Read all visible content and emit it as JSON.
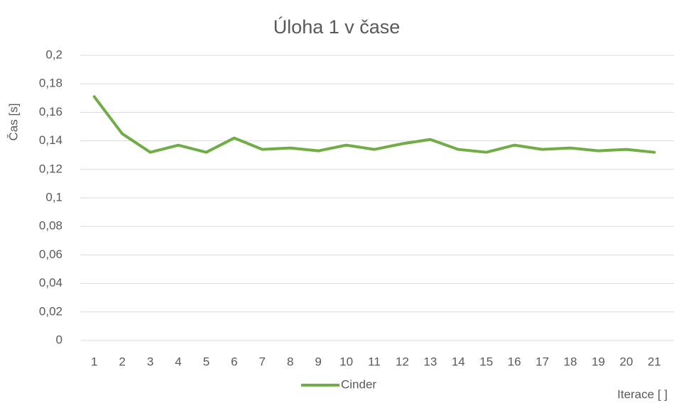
{
  "chart_data": {
    "type": "line",
    "title": "Úloha 1 v čase",
    "y_label": "Čas [s]",
    "x_label": "Iterace [ ]",
    "categories": [
      "1",
      "2",
      "3",
      "4",
      "5",
      "6",
      "7",
      "8",
      "9",
      "10",
      "11",
      "12",
      "13",
      "14",
      "15",
      "16",
      "17",
      "18",
      "19",
      "20",
      "21"
    ],
    "series": [
      {
        "name": "Cinder",
        "color": "#70ad47",
        "values": [
          0.171,
          0.145,
          0.132,
          0.137,
          0.132,
          0.142,
          0.134,
          0.135,
          0.133,
          0.137,
          0.134,
          0.138,
          0.141,
          0.134,
          0.132,
          0.137,
          0.134,
          0.135,
          0.133,
          0.134,
          0.132
        ]
      }
    ],
    "ylim": [
      0,
      0.2
    ],
    "yticks": [
      0,
      {
        "value": 0.02,
        "label": "0,02"
      },
      {
        "value": 0.04,
        "label": "0,04"
      },
      {
        "value": 0.06,
        "label": "0,06"
      },
      {
        "value": 0.08,
        "label": "0,08"
      },
      {
        "value": 0.1,
        "label": "0,1"
      },
      {
        "value": 0.12,
        "label": "0,12"
      },
      {
        "value": 0.14,
        "label": "0,14"
      },
      {
        "value": 0.16,
        "label": "0,16"
      },
      {
        "value": 0.18,
        "label": "0,18"
      },
      {
        "value": 0.2,
        "label": "0,2"
      }
    ],
    "grid": true,
    "legend": "bottom"
  }
}
